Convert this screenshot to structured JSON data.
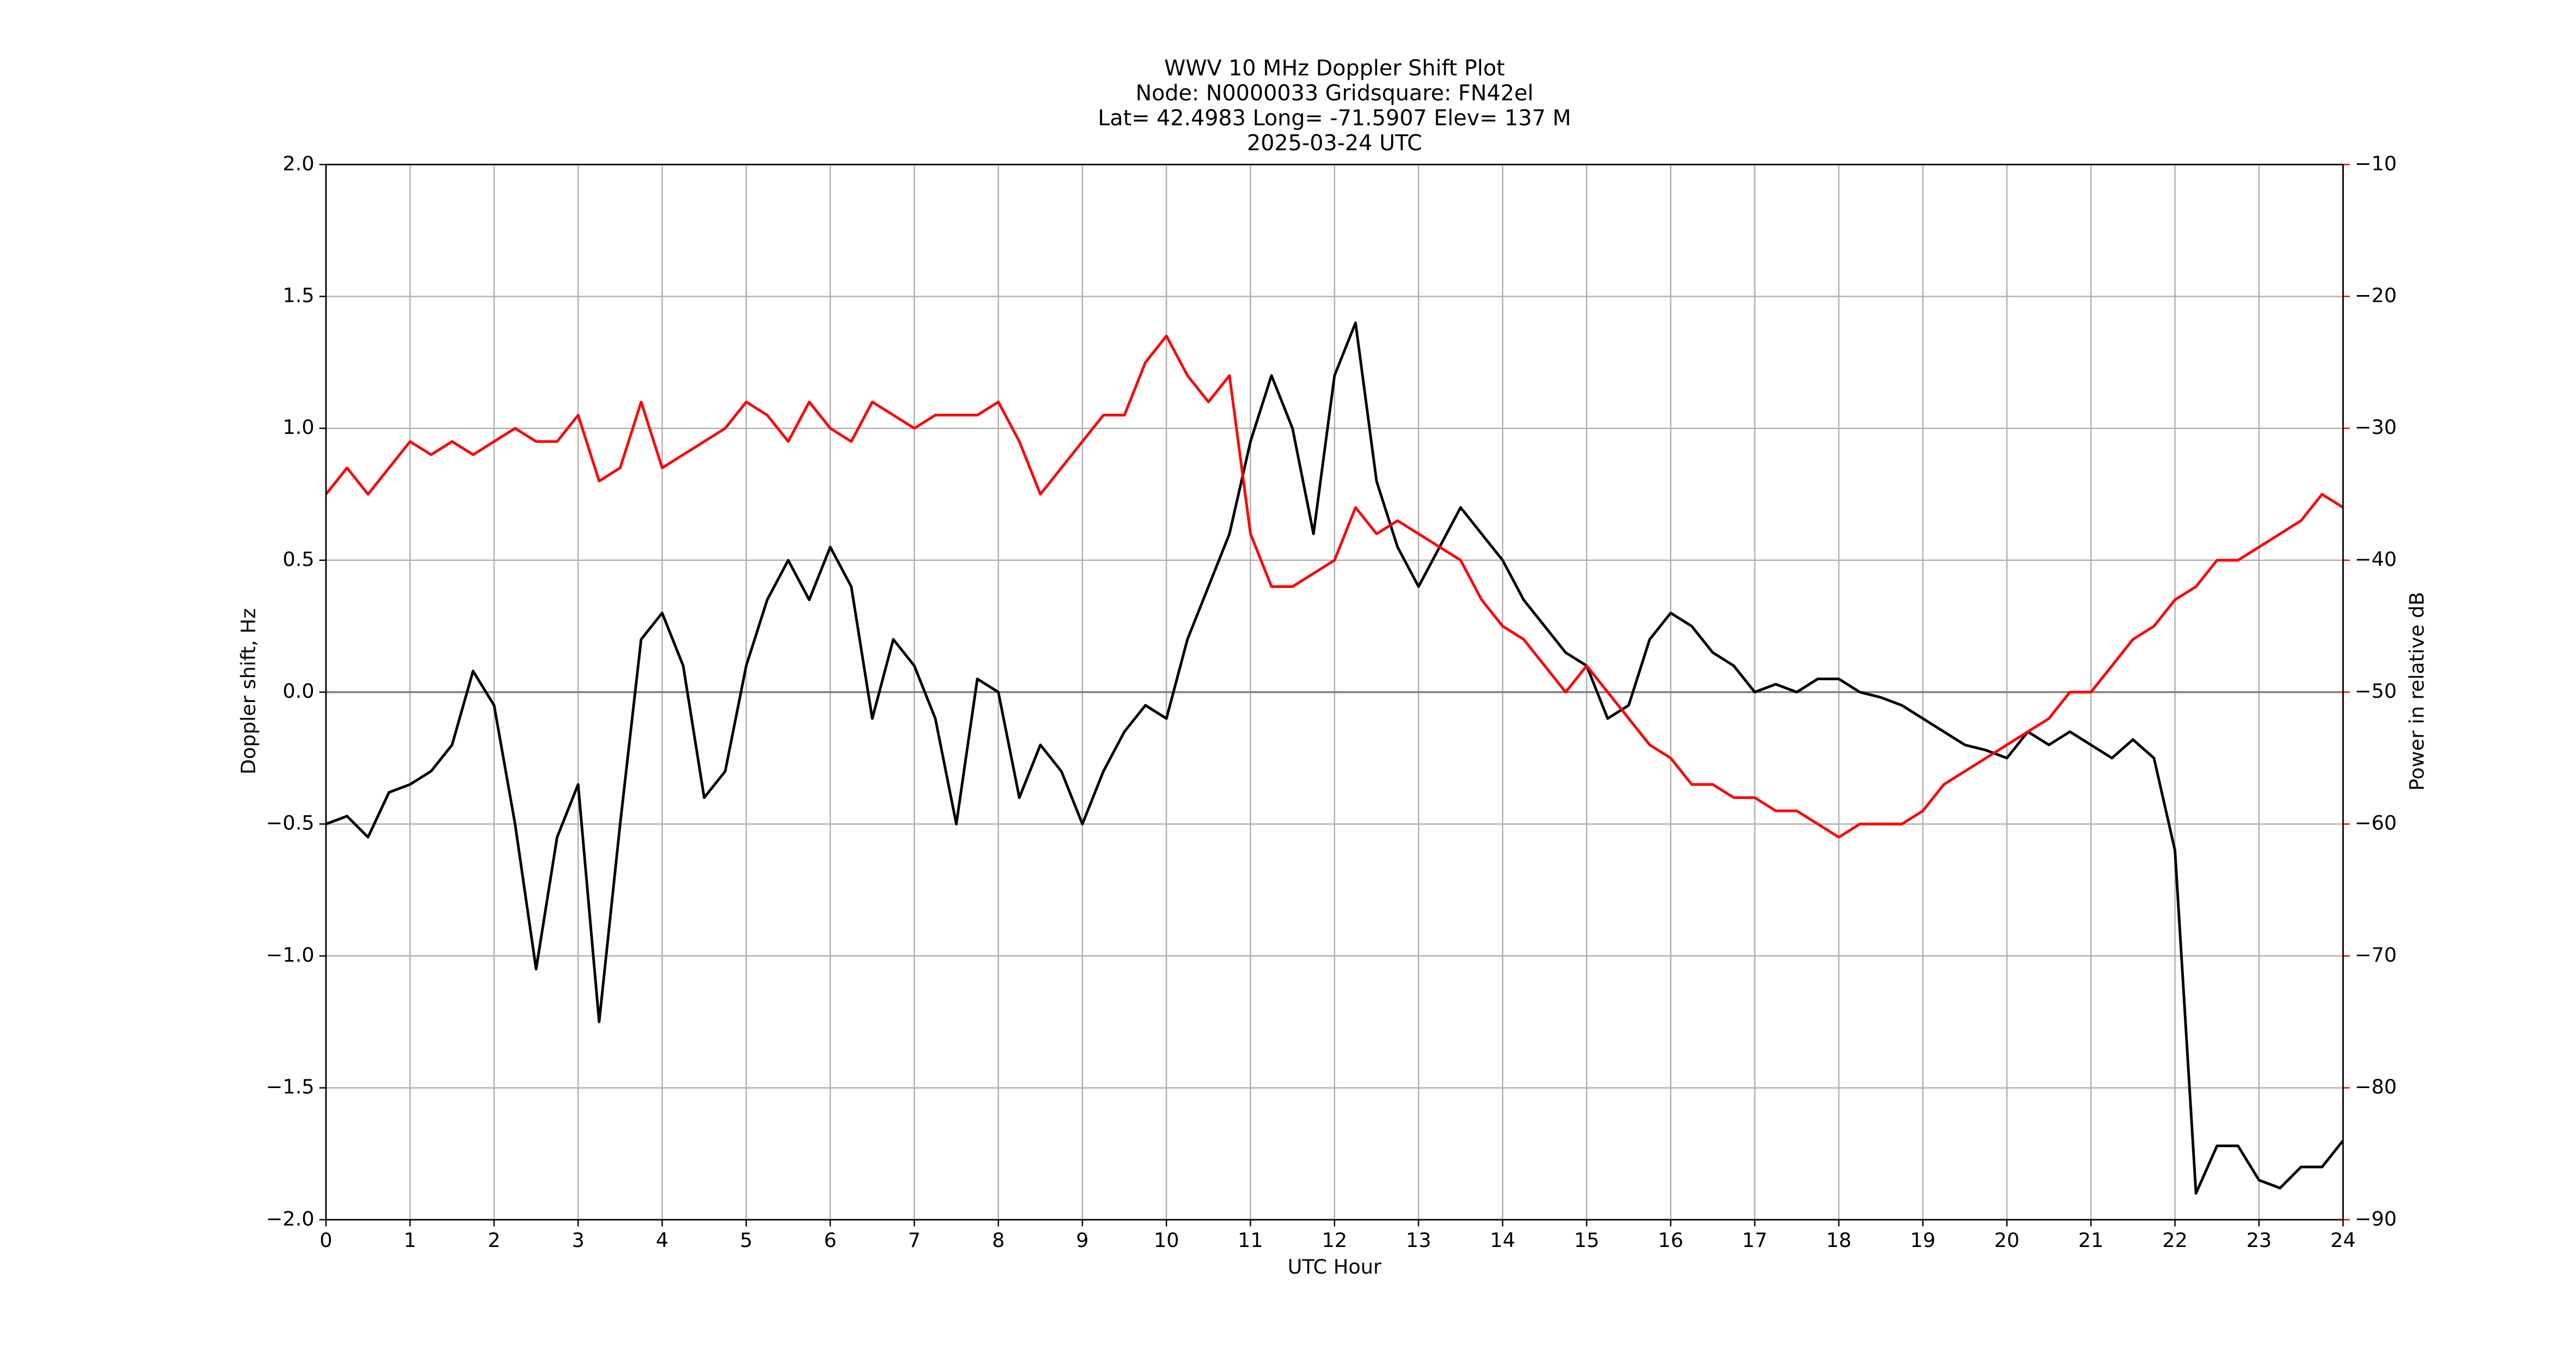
{
  "chart_data": {
    "type": "line",
    "title": [
      "WWV 10 MHz Doppler Shift Plot",
      "Node:  N0000033     Gridsquare:  FN42el",
      "Lat= 42.4983    Long= -71.5907    Elev= 137 M",
      "2025-03-24  UTC"
    ],
    "x_label": "UTC Hour",
    "y_label": "Doppler shift, Hz",
    "y2_label": "Power in relative dB",
    "y2_color": "#ff0000",
    "grid": true,
    "xlim": [
      0,
      24
    ],
    "xticks": [
      0,
      1,
      2,
      3,
      4,
      5,
      6,
      7,
      8,
      9,
      10,
      11,
      12,
      13,
      14,
      15,
      16,
      17,
      18,
      19,
      20,
      21,
      22,
      23,
      24
    ],
    "ylim": [
      -2,
      2
    ],
    "yticks": [
      {
        "value": -2,
        "label": "−2.0"
      },
      {
        "value": -1.5,
        "label": "−1.5"
      },
      {
        "value": -1,
        "label": "−1.0"
      },
      {
        "value": -0.5,
        "label": "−0.5"
      },
      {
        "value": 0,
        "label": "0.0"
      },
      0.5,
      {
        "value": 1,
        "label": "1.0"
      },
      1.5,
      {
        "value": 2,
        "label": "2.0"
      }
    ],
    "y2lim": [
      -90,
      -10
    ],
    "y2ticks": [
      {
        "value": -90,
        "label": "−90"
      },
      {
        "value": -80,
        "label": "−80"
      },
      {
        "value": -70,
        "label": "−70"
      },
      {
        "value": -60,
        "label": "−60"
      },
      {
        "value": -50,
        "label": "−50"
      },
      {
        "value": -40,
        "label": "−40"
      },
      {
        "value": -30,
        "label": "−30"
      },
      {
        "value": -20,
        "label": "−20"
      },
      {
        "value": -10,
        "label": "−10"
      }
    ],
    "x": [
      0,
      0.25,
      0.5,
      0.75,
      1,
      1.25,
      1.5,
      1.75,
      2,
      2.25,
      2.5,
      2.75,
      3,
      3.25,
      3.5,
      3.75,
      4,
      4.25,
      4.5,
      4.75,
      5,
      5.25,
      5.5,
      5.75,
      6,
      6.25,
      6.5,
      6.75,
      7,
      7.25,
      7.5,
      7.75,
      8,
      8.25,
      8.5,
      8.75,
      9,
      9.25,
      9.5,
      9.75,
      10,
      10.25,
      10.5,
      10.75,
      11,
      11.25,
      11.5,
      11.75,
      12,
      12.25,
      12.5,
      12.75,
      13,
      13.25,
      13.5,
      13.75,
      14,
      14.25,
      14.5,
      14.75,
      15,
      15.25,
      15.5,
      15.75,
      16,
      16.25,
      16.5,
      16.75,
      17,
      17.25,
      17.5,
      17.75,
      18,
      18.25,
      18.5,
      18.75,
      19,
      19.25,
      19.5,
      19.75,
      20,
      20.25,
      20.5,
      20.75,
      21,
      21.25,
      21.5,
      21.75,
      22,
      22.25,
      22.5,
      22.75,
      23,
      23.25,
      23.5,
      23.75,
      24
    ],
    "series": [
      {
        "color": "#000000",
        "axis": "y",
        "values": [
          -0.5,
          -0.47,
          -0.55,
          -0.38,
          -0.35,
          -0.3,
          -0.2,
          0.08,
          -0.05,
          -0.5,
          -1.05,
          -0.55,
          -0.35,
          -1.25,
          -0.5,
          0.2,
          0.3,
          0.1,
          -0.4,
          -0.3,
          0.1,
          0.35,
          0.5,
          0.35,
          0.55,
          0.4,
          -0.1,
          0.2,
          0.1,
          -0.1,
          -0.5,
          0.05,
          0,
          -0.4,
          -0.2,
          -0.3,
          -0.5,
          -0.3,
          -0.15,
          -0.05,
          -0.1,
          0.2,
          0.4,
          0.6,
          0.95,
          1.2,
          1,
          0.6,
          1.2,
          1.4,
          0.8,
          0.55,
          0.4,
          0.55,
          0.7,
          0.6,
          0.5,
          0.35,
          0.25,
          0.15,
          0.1,
          -0.1,
          -0.05,
          0.2,
          0.3,
          0.25,
          0.15,
          0.1,
          0,
          0.03,
          0,
          0.05,
          0.05,
          0,
          -0.02,
          -0.05,
          -0.1,
          -0.15,
          -0.2,
          -0.22,
          -0.25,
          -0.15,
          -0.2,
          -0.15,
          -0.2,
          -0.25,
          -0.18,
          -0.25,
          -0.6,
          -1.9,
          -1.72,
          -1.72,
          -1.85,
          -1.88,
          -1.8,
          -1.8,
          -1.7
        ]
      },
      {
        "color": "#ff0000",
        "axis": "y2",
        "values": [
          -35,
          -33,
          -35,
          -33,
          -31,
          -32,
          -31,
          -32,
          -31,
          -30,
          -31,
          -31,
          -29,
          -34,
          -33,
          -28,
          -33,
          -32,
          -31,
          -30,
          -28,
          -29,
          -31,
          -28,
          -30,
          -31,
          -28,
          -29,
          -30,
          -29,
          -29,
          -29,
          -28,
          -31,
          -35,
          -33,
          -31,
          -29,
          -29,
          -25,
          -23,
          -26,
          -28,
          -26,
          -38,
          -42,
          -42,
          -41,
          -40,
          -36,
          -38,
          -37,
          -38,
          -39,
          -40,
          -43,
          -45,
          -46,
          -48,
          -50,
          -48,
          -50,
          -52,
          -54,
          -55,
          -57,
          -57,
          -58,
          -58,
          -59,
          -59,
          -60,
          -61,
          -60,
          -60,
          -60,
          -59,
          -57,
          -56,
          -55,
          -54,
          -53,
          -52,
          -50,
          -50,
          -48,
          -46,
          -45,
          -43,
          -42,
          -40,
          -40,
          -39,
          -38,
          -37,
          -35,
          -36
        ]
      }
    ]
  }
}
